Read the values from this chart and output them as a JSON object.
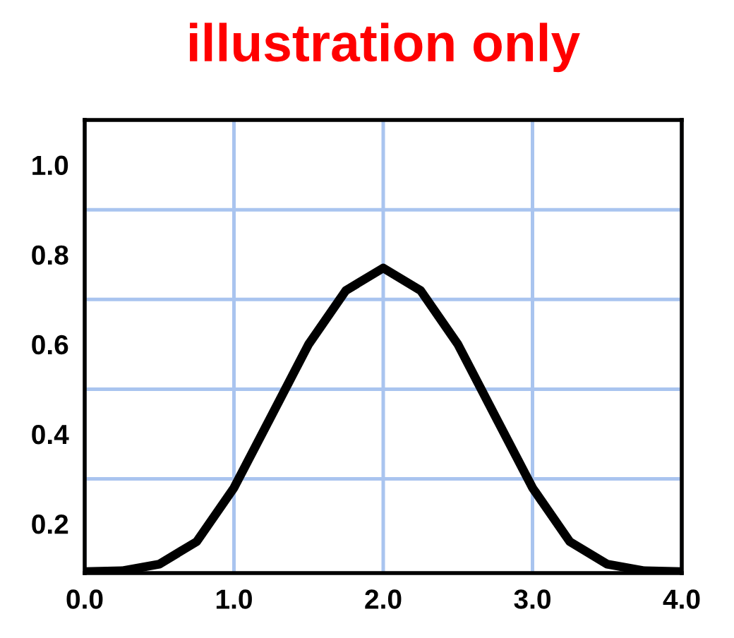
{
  "chart_data": {
    "type": "line",
    "title": "illustration only",
    "x": [
      0,
      0.25,
      0.5,
      0.75,
      1.0,
      1.25,
      1.5,
      1.75,
      2.0,
      2.25,
      2.5,
      2.75,
      3.0,
      3.25,
      3.5,
      3.75,
      4.0
    ],
    "series": [
      {
        "color": "#000000",
        "values": [
          0.093,
          0.095,
          0.11,
          0.16,
          0.28,
          0.44,
          0.6,
          0.72,
          0.77,
          0.72,
          0.6,
          0.44,
          0.28,
          0.16,
          0.11,
          0.095,
          0.093
        ]
      }
    ],
    "xlim": [
      0,
      4
    ],
    "xticks": [
      {
        "value": 0,
        "label": "0.0"
      },
      {
        "value": 1,
        "label": "1.0"
      },
      {
        "value": 2,
        "label": "2.0"
      },
      {
        "value": 3,
        "label": "3.0"
      },
      {
        "value": 4,
        "label": "4.0"
      }
    ],
    "ylim": [
      0.09,
      1.1
    ],
    "yticks": [
      0.2,
      0.4,
      0.6,
      0.8,
      {
        "value": 1.0,
        "label": "1.0"
      }
    ],
    "grid": "x",
    "marker": "none",
    "line_style": "solid",
    "ref_lines": [
      {
        "axis": "y",
        "value": 0.3,
        "color": "#a9c4ef"
      },
      {
        "axis": "y",
        "value": 0.5,
        "color": "#a9c4ef"
      },
      {
        "axis": "y",
        "value": 0.7,
        "color": "#a9c4ef"
      },
      {
        "axis": "y",
        "value": 0.9,
        "color": "#a9c4ef"
      }
    ]
  }
}
